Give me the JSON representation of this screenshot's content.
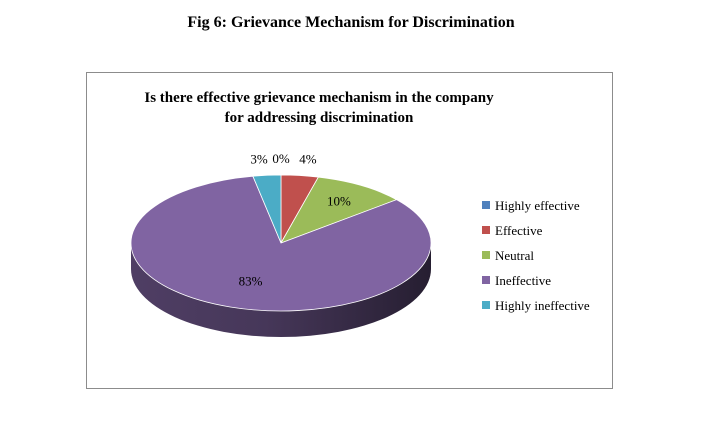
{
  "figure": {
    "caption": "Fig 6: Grievance Mechanism for Discrimination"
  },
  "chart_data": {
    "type": "pie",
    "title_lines": [
      "Is there effective grievance mechanism in the company",
      "for addressing discrimination"
    ],
    "categories": [
      "Highly effective",
      "Effective",
      "Neutral",
      "Ineffective",
      "Highly ineffective"
    ],
    "values": [
      0,
      4,
      10,
      83,
      3
    ],
    "data_labels": [
      "0%",
      "4%",
      "10%",
      "83%",
      "3%"
    ],
    "colors": [
      "#4f81bd",
      "#c0504d",
      "#9bbb59",
      "#8064a2",
      "#4bacc6"
    ],
    "legend_position": "right",
    "style": "3d"
  }
}
